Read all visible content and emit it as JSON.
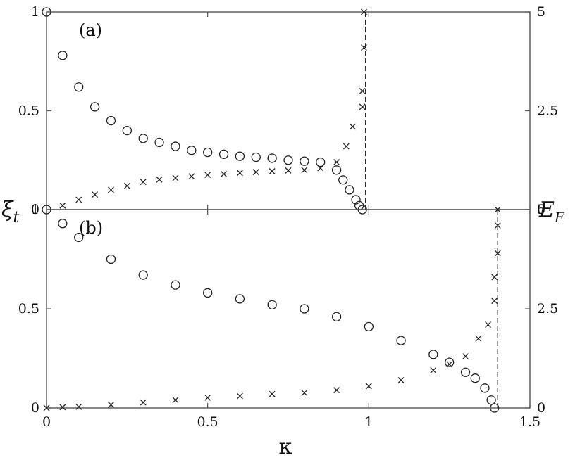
{
  "chart_data": [
    {
      "panel_label": "(a)",
      "type": "scatter",
      "xlim": [
        0,
        1.5
      ],
      "ylim_left": [
        0,
        1
      ],
      "ylim_right": [
        0,
        5
      ],
      "series": [
        {
          "marker": "circle",
          "axis": "left",
          "x": [
            0,
            0.05,
            0.1,
            0.15,
            0.2,
            0.25,
            0.3,
            0.35,
            0.4,
            0.45,
            0.5,
            0.55,
            0.6,
            0.65,
            0.7,
            0.75,
            0.8,
            0.85,
            0.9,
            0.92,
            0.94,
            0.96,
            0.97,
            0.98
          ],
          "y": [
            1,
            0.78,
            0.62,
            0.52,
            0.45,
            0.4,
            0.36,
            0.34,
            0.32,
            0.3,
            0.29,
            0.28,
            0.27,
            0.265,
            0.26,
            0.25,
            0.245,
            0.24,
            0.2,
            0.15,
            0.1,
            0.05,
            0.02,
            0
          ]
        },
        {
          "marker": "cross",
          "axis": "right",
          "x": [
            0.05,
            0.1,
            0.15,
            0.2,
            0.25,
            0.3,
            0.35,
            0.4,
            0.45,
            0.5,
            0.55,
            0.6,
            0.65,
            0.7,
            0.75,
            0.8,
            0.85,
            0.9,
            0.93,
            0.95,
            0.98,
            0.98,
            0.985,
            0.985
          ],
          "y": [
            0.1,
            0.25,
            0.38,
            0.5,
            0.6,
            0.7,
            0.76,
            0.8,
            0.84,
            0.88,
            0.9,
            0.93,
            0.95,
            0.97,
            0.99,
            1.0,
            1.05,
            1.2,
            1.6,
            2.1,
            2.6,
            3.0,
            4.1,
            5.0
          ]
        }
      ],
      "vline_x": 0.99
    },
    {
      "panel_label": "(b)",
      "type": "scatter",
      "xlim": [
        0,
        1.5
      ],
      "ylim_left": [
        0,
        1
      ],
      "ylim_right": [
        0,
        5
      ],
      "series": [
        {
          "marker": "circle",
          "axis": "left",
          "x": [
            0,
            0.05,
            0.1,
            0.2,
            0.3,
            0.4,
            0.5,
            0.6,
            0.7,
            0.8,
            0.9,
            1.0,
            1.1,
            1.2,
            1.25,
            1.3,
            1.33,
            1.36,
            1.38,
            1.39
          ],
          "y": [
            1,
            0.93,
            0.86,
            0.75,
            0.67,
            0.62,
            0.58,
            0.55,
            0.52,
            0.5,
            0.46,
            0.41,
            0.34,
            0.27,
            0.23,
            0.18,
            0.15,
            0.1,
            0.04,
            0
          ]
        },
        {
          "marker": "cross",
          "axis": "right",
          "x": [
            0,
            0.05,
            0.1,
            0.2,
            0.3,
            0.4,
            0.5,
            0.6,
            0.7,
            0.8,
            0.9,
            1.0,
            1.1,
            1.2,
            1.25,
            1.3,
            1.34,
            1.37,
            1.39,
            1.39,
            1.4,
            1.4,
            1.4
          ],
          "y": [
            0,
            0.02,
            0.03,
            0.08,
            0.14,
            0.2,
            0.26,
            0.3,
            0.35,
            0.38,
            0.45,
            0.55,
            0.7,
            0.95,
            1.1,
            1.3,
            1.75,
            2.1,
            2.7,
            3.3,
            3.9,
            4.6,
            5.0
          ]
        }
      ],
      "vline_x": 1.4
    }
  ],
  "axes": {
    "left_label": "ξ",
    "left_label_sub": "t",
    "right_label": "E",
    "right_label_sub": "F",
    "x_label": "κ",
    "x_ticks": [
      "0",
      "0.5",
      "1",
      "1.5"
    ],
    "left_ticks": [
      "0",
      "0.5",
      "1"
    ],
    "right_ticks": [
      "0",
      "2.5",
      "5"
    ]
  }
}
